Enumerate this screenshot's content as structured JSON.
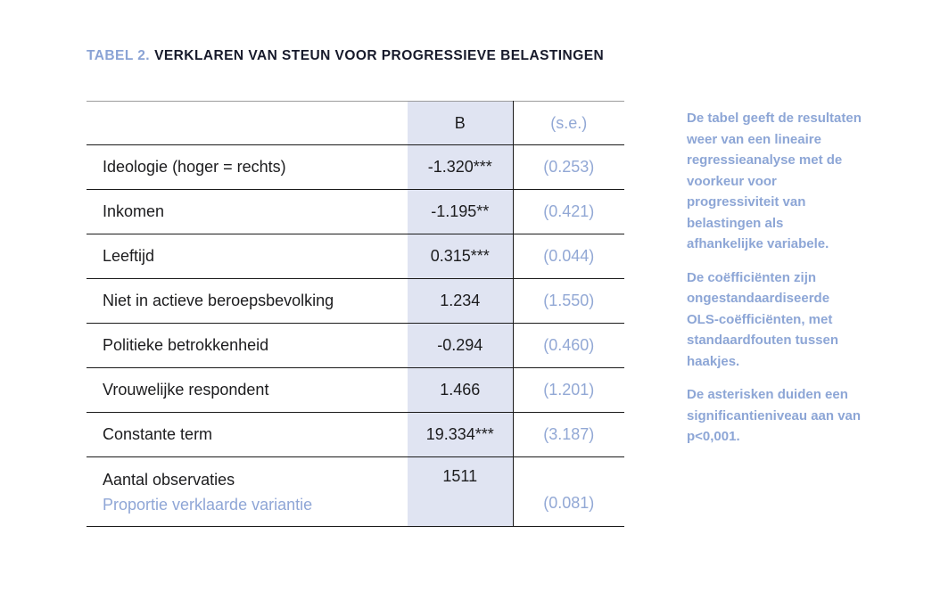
{
  "header": {
    "label": "TABEL 2.",
    "title": "VERKLAREN VAN STEUN VOOR PROGRESSIEVE BELASTINGEN"
  },
  "table": {
    "columns": {
      "b": "B",
      "se": "(s.e.)"
    },
    "rows": [
      {
        "label": "Ideologie (hoger = rechts)",
        "b": "-1.320***",
        "se": "(0.253)"
      },
      {
        "label": "Inkomen",
        "b": "-1.195**",
        "se": "(0.421)"
      },
      {
        "label": "Leeftijd",
        "b": "0.315***",
        "se": "(0.044)"
      },
      {
        "label": "Niet in actieve beroepsbevolking",
        "b": "1.234",
        "se": "(1.550)"
      },
      {
        "label": "Politieke betrokkenheid",
        "b": "-0.294",
        "se": "(0.460)"
      },
      {
        "label": "Vrouwelijke respondent",
        "b": "1.466",
        "se": "(1.201)"
      },
      {
        "label": "Constante term",
        "b": "19.334***",
        "se": "(3.187)"
      }
    ],
    "footer": {
      "label_line1": "Aantal observaties",
      "label_line2": "Proportie verklaarde variantie",
      "b": "1511",
      "se": "(0.081)"
    }
  },
  "notes": [
    "De tabel geeft de resultaten weer van een lineaire regressieanalyse met de voorkeur voor progressiviteit van belastingen als afhankelijke variabele.",
    "De coëfficiënten zijn ongestandaardiseerde OLS-coëfficiënten, met standaardfouten tussen haakjes.",
    "De asterisken duiden een significantieniveau aan van p<0,001."
  ],
  "colors": {
    "accent_blue": "#8da6d6",
    "b_column_bg": "#e0e4f2",
    "text_dark": "#1c1c1e"
  }
}
